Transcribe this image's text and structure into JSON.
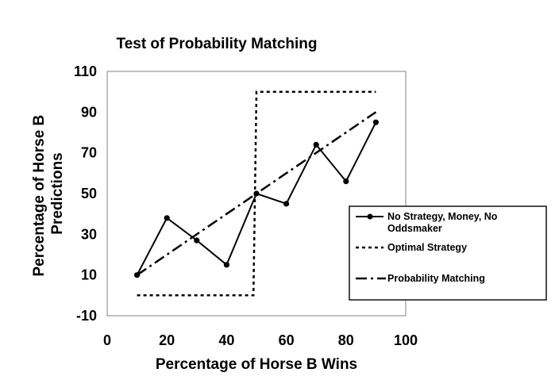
{
  "chart_data": {
    "type": "line",
    "title": "Test of Probability Matching",
    "xlabel": "Percentage of Horse B Wins",
    "ylabel_lines": [
      "Percentage of Horse B",
      "Predictions"
    ],
    "xlim": [
      0,
      100
    ],
    "ylim": [
      -10,
      110
    ],
    "xticks": [
      "0",
      "20",
      "40",
      "60",
      "80",
      "100"
    ],
    "yticks": [
      "-10",
      "10",
      "30",
      "50",
      "70",
      "90",
      "110"
    ],
    "grid": false,
    "legend_position": "right",
    "series": [
      {
        "name_lines": [
          "No Strategy, Money, No",
          "Oddsmaker"
        ],
        "style": "solid-markers",
        "x": [
          10,
          20,
          30,
          40,
          50,
          60,
          70,
          80,
          90
        ],
        "y": [
          10,
          38,
          27,
          15,
          50,
          45,
          74,
          56,
          85
        ]
      },
      {
        "name": "Optimal Strategy",
        "style": "dotted",
        "x": [
          10,
          49,
          50,
          90
        ],
        "y": [
          0,
          0,
          100,
          100
        ]
      },
      {
        "name": "Probability Matching",
        "style": "dash-dot",
        "x": [
          10,
          90
        ],
        "y": [
          10,
          90
        ]
      }
    ]
  }
}
